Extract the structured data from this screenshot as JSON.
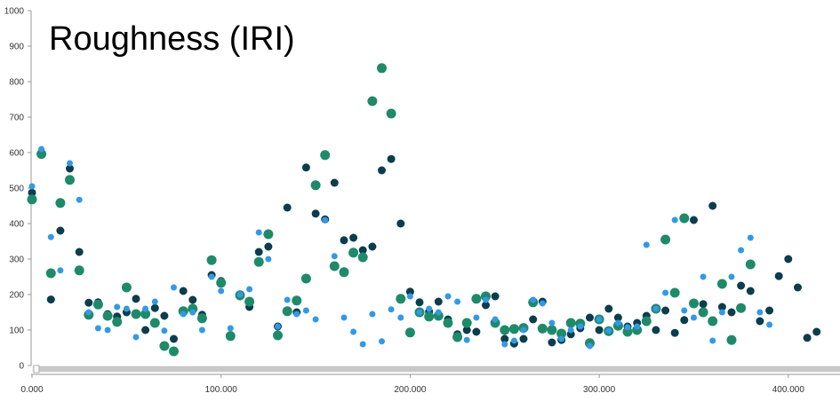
{
  "chart_data": {
    "type": "scatter",
    "title": "Roughness (IRI)",
    "xlabel": "",
    "ylabel": "",
    "xlim": [
      0,
      425000
    ],
    "ylim": [
      0,
      1000
    ],
    "y_ticks": [
      "0",
      "100",
      "200",
      "300",
      "400",
      "500",
      "600",
      "700",
      "800",
      "900",
      "1000"
    ],
    "x_ticks": [
      {
        "value": 0,
        "label": "0.000"
      },
      {
        "value": 100000,
        "label": "100.000"
      },
      {
        "value": 200000,
        "label": "200.000"
      },
      {
        "value": 300000,
        "label": "300.000"
      },
      {
        "value": 400000,
        "label": "400.000"
      }
    ],
    "grid": false,
    "legend": "none",
    "series": [
      {
        "color": "#0b3d4d",
        "size": 4.5,
        "points": [
          [
            0,
            487
          ],
          [
            5000,
            600
          ],
          [
            10000,
            186
          ],
          [
            15000,
            380
          ],
          [
            20000,
            555
          ],
          [
            25000,
            320
          ],
          [
            30000,
            177
          ],
          [
            35000,
            178
          ],
          [
            40000,
            145
          ],
          [
            45000,
            138
          ],
          [
            50000,
            150
          ],
          [
            55000,
            188
          ],
          [
            60000,
            100
          ],
          [
            65000,
            162
          ],
          [
            70000,
            140
          ],
          [
            75000,
            75
          ],
          [
            80000,
            210
          ],
          [
            85000,
            185
          ],
          [
            90000,
            143
          ],
          [
            95000,
            255
          ],
          [
            100000,
            238
          ],
          [
            105000,
            85
          ],
          [
            110000,
            195
          ],
          [
            115000,
            165
          ],
          [
            120000,
            320
          ],
          [
            125000,
            335
          ],
          [
            130000,
            110
          ],
          [
            135000,
            445
          ],
          [
            140000,
            150
          ],
          [
            145000,
            558
          ],
          [
            150000,
            428
          ],
          [
            155000,
            412
          ],
          [
            160000,
            515
          ],
          [
            165000,
            353
          ],
          [
            170000,
            360
          ],
          [
            175000,
            325
          ],
          [
            180000,
            335
          ],
          [
            185000,
            550
          ],
          [
            190000,
            582
          ],
          [
            195000,
            400
          ],
          [
            200000,
            208
          ],
          [
            205000,
            178
          ],
          [
            210000,
            152
          ],
          [
            215000,
            180
          ],
          [
            220000,
            130
          ],
          [
            225000,
            88
          ],
          [
            230000,
            100
          ],
          [
            235000,
            95
          ],
          [
            240000,
            170
          ],
          [
            245000,
            195
          ],
          [
            250000,
            75
          ],
          [
            255000,
            62
          ],
          [
            260000,
            75
          ],
          [
            265000,
            130
          ],
          [
            270000,
            180
          ],
          [
            275000,
            65
          ],
          [
            280000,
            72
          ],
          [
            285000,
            88
          ],
          [
            290000,
            105
          ],
          [
            295000,
            135
          ],
          [
            300000,
            100
          ],
          [
            305000,
            160
          ],
          [
            310000,
            135
          ],
          [
            315000,
            110
          ],
          [
            320000,
            120
          ],
          [
            325000,
            140
          ],
          [
            330000,
            100
          ],
          [
            335000,
            155
          ],
          [
            340000,
            92
          ],
          [
            345000,
            128
          ],
          [
            350000,
            410
          ],
          [
            355000,
            173
          ],
          [
            360000,
            450
          ],
          [
            365000,
            165
          ],
          [
            370000,
            150
          ],
          [
            375000,
            225
          ],
          [
            380000,
            210
          ],
          [
            385000,
            125
          ],
          [
            390000,
            155
          ],
          [
            395000,
            252
          ],
          [
            400000,
            300
          ],
          [
            405000,
            220
          ],
          [
            410000,
            78
          ],
          [
            415000,
            95
          ]
        ]
      },
      {
        "color": "#1f8a6a",
        "size": 5.5,
        "points": [
          [
            0,
            468
          ],
          [
            5000,
            596
          ],
          [
            10000,
            260
          ],
          [
            15000,
            458
          ],
          [
            20000,
            523
          ],
          [
            25000,
            268
          ],
          [
            30000,
            143
          ],
          [
            35000,
            172
          ],
          [
            40000,
            140
          ],
          [
            45000,
            123
          ],
          [
            50000,
            220
          ],
          [
            55000,
            145
          ],
          [
            60000,
            145
          ],
          [
            65000,
            120
          ],
          [
            70000,
            55
          ],
          [
            75000,
            40
          ],
          [
            80000,
            153
          ],
          [
            85000,
            160
          ],
          [
            90000,
            133
          ],
          [
            95000,
            297
          ],
          [
            100000,
            233
          ],
          [
            105000,
            83
          ],
          [
            110000,
            198
          ],
          [
            115000,
            180
          ],
          [
            120000,
            292
          ],
          [
            125000,
            370
          ],
          [
            130000,
            85
          ],
          [
            135000,
            153
          ],
          [
            140000,
            183
          ],
          [
            145000,
            245
          ],
          [
            150000,
            508
          ],
          [
            155000,
            593
          ],
          [
            160000,
            280
          ],
          [
            165000,
            263
          ],
          [
            170000,
            318
          ],
          [
            175000,
            305
          ],
          [
            180000,
            745
          ],
          [
            185000,
            838
          ],
          [
            190000,
            710
          ],
          [
            195000,
            188
          ],
          [
            200000,
            93
          ],
          [
            205000,
            150
          ],
          [
            210000,
            138
          ],
          [
            215000,
            140
          ],
          [
            220000,
            120
          ],
          [
            225000,
            80
          ],
          [
            230000,
            120
          ],
          [
            235000,
            188
          ],
          [
            240000,
            195
          ],
          [
            245000,
            120
          ],
          [
            250000,
            100
          ],
          [
            255000,
            103
          ],
          [
            260000,
            106
          ],
          [
            265000,
            178
          ],
          [
            270000,
            104
          ],
          [
            275000,
            100
          ],
          [
            280000,
            90
          ],
          [
            285000,
            120
          ],
          [
            290000,
            118
          ],
          [
            295000,
            63
          ],
          [
            300000,
            130
          ],
          [
            305000,
            97
          ],
          [
            310000,
            112
          ],
          [
            315000,
            95
          ],
          [
            320000,
            100
          ],
          [
            325000,
            125
          ],
          [
            330000,
            160
          ],
          [
            335000,
            355
          ],
          [
            340000,
            205
          ],
          [
            345000,
            415
          ],
          [
            350000,
            175
          ],
          [
            355000,
            150
          ],
          [
            360000,
            125
          ],
          [
            365000,
            230
          ],
          [
            370000,
            72
          ],
          [
            375000,
            162
          ],
          [
            380000,
            285
          ]
        ]
      },
      {
        "color": "#3399e6",
        "size": 3.5,
        "points": [
          [
            0,
            505
          ],
          [
            5000,
            610
          ],
          [
            10000,
            362
          ],
          [
            15000,
            268
          ],
          [
            20000,
            570
          ],
          [
            25000,
            467
          ],
          [
            30000,
            150
          ],
          [
            35000,
            105
          ],
          [
            40000,
            100
          ],
          [
            45000,
            165
          ],
          [
            50000,
            160
          ],
          [
            55000,
            80
          ],
          [
            60000,
            160
          ],
          [
            65000,
            180
          ],
          [
            70000,
            98
          ],
          [
            75000,
            220
          ],
          [
            80000,
            145
          ],
          [
            85000,
            150
          ],
          [
            90000,
            100
          ],
          [
            95000,
            250
          ],
          [
            100000,
            210
          ],
          [
            105000,
            105
          ],
          [
            110000,
            200
          ],
          [
            115000,
            215
          ],
          [
            120000,
            375
          ],
          [
            125000,
            300
          ],
          [
            130000,
            110
          ],
          [
            135000,
            185
          ],
          [
            140000,
            145
          ],
          [
            145000,
            155
          ],
          [
            150000,
            130
          ],
          [
            155000,
            410
          ],
          [
            160000,
            308
          ],
          [
            165000,
            135
          ],
          [
            170000,
            95
          ],
          [
            175000,
            60
          ],
          [
            180000,
            145
          ],
          [
            185000,
            68
          ],
          [
            190000,
            158
          ],
          [
            195000,
            135
          ],
          [
            200000,
            195
          ],
          [
            205000,
            150
          ],
          [
            210000,
            160
          ],
          [
            215000,
            150
          ],
          [
            220000,
            195
          ],
          [
            225000,
            180
          ],
          [
            230000,
            72
          ],
          [
            235000,
            135
          ],
          [
            240000,
            185
          ],
          [
            245000,
            130
          ],
          [
            250000,
            60
          ],
          [
            255000,
            70
          ],
          [
            260000,
            100
          ],
          [
            265000,
            185
          ],
          [
            270000,
            175
          ],
          [
            275000,
            120
          ],
          [
            280000,
            75
          ],
          [
            285000,
            100
          ],
          [
            290000,
            110
          ],
          [
            295000,
            55
          ],
          [
            300000,
            130
          ],
          [
            305000,
            98
          ],
          [
            310000,
            120
          ],
          [
            315000,
            108
          ],
          [
            320000,
            110
          ],
          [
            325000,
            340
          ],
          [
            330000,
            160
          ],
          [
            335000,
            205
          ],
          [
            340000,
            410
          ],
          [
            345000,
            155
          ],
          [
            350000,
            135
          ],
          [
            355000,
            250
          ],
          [
            360000,
            70
          ],
          [
            365000,
            150
          ],
          [
            370000,
            250
          ],
          [
            375000,
            325
          ],
          [
            380000,
            360
          ],
          [
            385000,
            150
          ],
          [
            390000,
            115
          ]
        ]
      }
    ]
  }
}
